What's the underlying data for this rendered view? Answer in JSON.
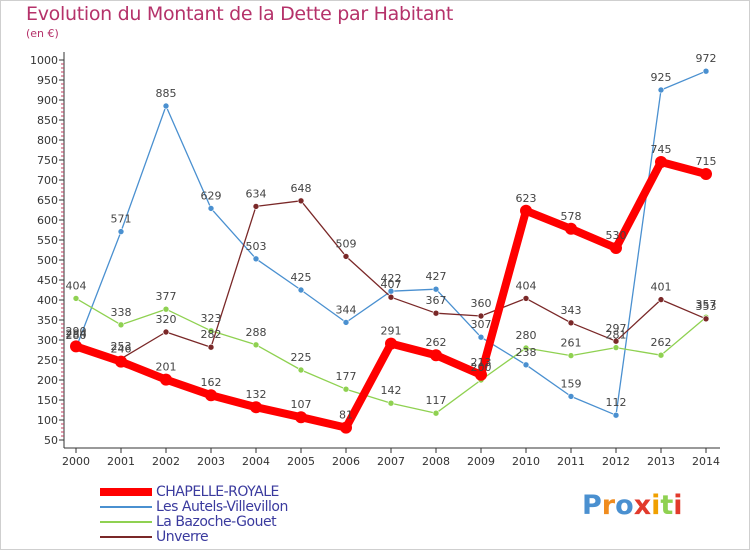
{
  "header": {
    "title": "Evolution du Montant de la Dette par Habitant",
    "subtitle": "(en €)"
  },
  "logo_text": "Proxiti",
  "chart_data": {
    "type": "line",
    "title": "Evolution du Montant de la Dette par Habitant",
    "subtitle": "(en €)",
    "xlabel": "",
    "ylabel": "",
    "x": [
      "2000",
      "2001",
      "2002",
      "2003",
      "2004",
      "2005",
      "2006",
      "2007",
      "2008",
      "2009",
      "2010",
      "2011",
      "2012",
      "2013",
      "2014"
    ],
    "ylim": [
      50,
      1000
    ],
    "yticks": [
      50,
      100,
      150,
      200,
      250,
      300,
      350,
      400,
      450,
      500,
      550,
      600,
      650,
      700,
      750,
      800,
      850,
      900,
      950,
      1000
    ],
    "grid": false,
    "legend": "bottom-left",
    "series": [
      {
        "name": "CHAPELLE-ROYALE",
        "color": "#ff0000",
        "values": [
          284,
          246,
          201,
          162,
          132,
          107,
          81,
          291,
          262,
          213,
          623,
          578,
          530,
          745,
          715
        ]
      },
      {
        "name": "Les Autels-Villevillon",
        "color": "#4a90d0",
        "values": [
          280,
          571,
          885,
          629,
          503,
          425,
          344,
          422,
          427,
          307,
          238,
          159,
          112,
          925,
          972
        ]
      },
      {
        "name": "La Bazoche-Gouet",
        "color": "#8fd151",
        "values": [
          404,
          338,
          377,
          323,
          288,
          225,
          177,
          142,
          117,
          200,
          280,
          261,
          281,
          262,
          357
        ]
      },
      {
        "name": "Unverre",
        "color": "#7a2828",
        "values": [
          290,
          253,
          320,
          282,
          634,
          648,
          509,
          407,
          367,
          360,
          404,
          343,
          297,
          401,
          353
        ]
      }
    ]
  }
}
